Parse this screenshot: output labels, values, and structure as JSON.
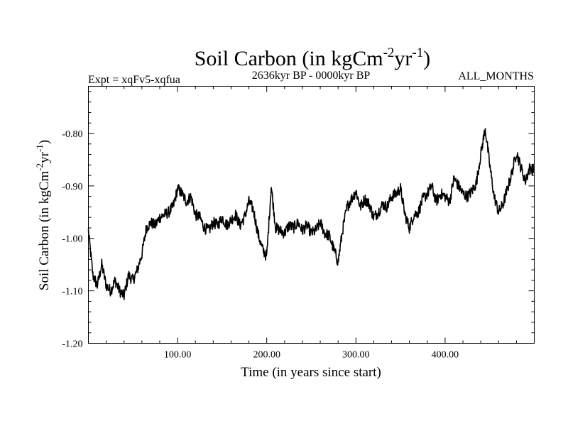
{
  "chart_data": {
    "type": "line",
    "title": "Soil Carbon (in kgCm",
    "title_sup1": "-2",
    "title_mid": "yr",
    "title_sup2": "-1",
    "title_end": ")",
    "subtitle_left": "Expt = xqFv5-xqfua",
    "subtitle_center": "2636kyr BP - 0000kyr BP",
    "subtitle_right": "ALL_MONTHS",
    "xlabel": "Time (in years since start)",
    "ylabel": "Soil Carbon (in kgCm",
    "ylabel_sup1": "-2",
    "ylabel_mid": "yr",
    "ylabel_sup2": "-1",
    "ylabel_end": ")",
    "xlim": [
      0,
      500
    ],
    "ylim": [
      -1.2,
      -0.71
    ],
    "x_major_ticks": [
      100,
      200,
      300,
      400
    ],
    "x_tick_labels": [
      "100.00",
      "200.00",
      "300.00",
      "400.00"
    ],
    "y_major_ticks": [
      -1.2,
      -1.1,
      -1.0,
      -0.9,
      -0.8
    ],
    "y_tick_labels": [
      "-1.20",
      "-1.10",
      "-1.00",
      "-0.90",
      "-0.80"
    ],
    "grid": false,
    "x": [
      0,
      5,
      10,
      15,
      20,
      25,
      30,
      35,
      40,
      45,
      50,
      55,
      60,
      65,
      70,
      75,
      80,
      85,
      90,
      95,
      100,
      105,
      110,
      115,
      120,
      125,
      130,
      135,
      140,
      145,
      150,
      155,
      160,
      165,
      170,
      175,
      180,
      185,
      190,
      195,
      200,
      205,
      210,
      215,
      220,
      225,
      230,
      235,
      240,
      245,
      250,
      255,
      260,
      265,
      270,
      275,
      280,
      285,
      290,
      295,
      300,
      305,
      310,
      315,
      320,
      325,
      330,
      335,
      340,
      345,
      350,
      355,
      360,
      365,
      370,
      375,
      380,
      385,
      390,
      395,
      400,
      405,
      410,
      415,
      420,
      425,
      430,
      435,
      440,
      445,
      450,
      455,
      460,
      465,
      470,
      475,
      480,
      485,
      490,
      495,
      500
    ],
    "series": [
      {
        "name": "Soil Carbon",
        "values": [
          -0.985,
          -1.07,
          -1.09,
          -1.05,
          -1.09,
          -1.1,
          -1.08,
          -1.1,
          -1.11,
          -1.07,
          -1.08,
          -1.06,
          -1.03,
          -0.98,
          -0.97,
          -0.975,
          -0.96,
          -0.955,
          -0.95,
          -0.94,
          -0.905,
          -0.915,
          -0.93,
          -0.92,
          -0.955,
          -0.96,
          -0.98,
          -0.985,
          -0.97,
          -0.975,
          -0.96,
          -0.975,
          -0.965,
          -0.955,
          -0.975,
          -0.96,
          -0.93,
          -0.945,
          -0.99,
          -1.02,
          -1.035,
          -0.9,
          -0.98,
          -0.985,
          -0.99,
          -0.975,
          -0.98,
          -0.97,
          -0.985,
          -0.975,
          -0.99,
          -0.985,
          -0.97,
          -0.99,
          -0.995,
          -1.02,
          -1.045,
          -0.985,
          -0.94,
          -0.925,
          -0.91,
          -0.94,
          -0.925,
          -0.935,
          -0.96,
          -0.95,
          -0.935,
          -0.94,
          -0.92,
          -0.915,
          -0.905,
          -0.955,
          -0.98,
          -0.955,
          -0.95,
          -0.925,
          -0.915,
          -0.9,
          -0.93,
          -0.915,
          -0.92,
          -0.93,
          -0.885,
          -0.9,
          -0.915,
          -0.92,
          -0.91,
          -0.895,
          -0.84,
          -0.79,
          -0.86,
          -0.92,
          -0.95,
          -0.935,
          -0.905,
          -0.875,
          -0.835,
          -0.865,
          -0.89,
          -0.865,
          -0.87
        ]
      }
    ]
  }
}
